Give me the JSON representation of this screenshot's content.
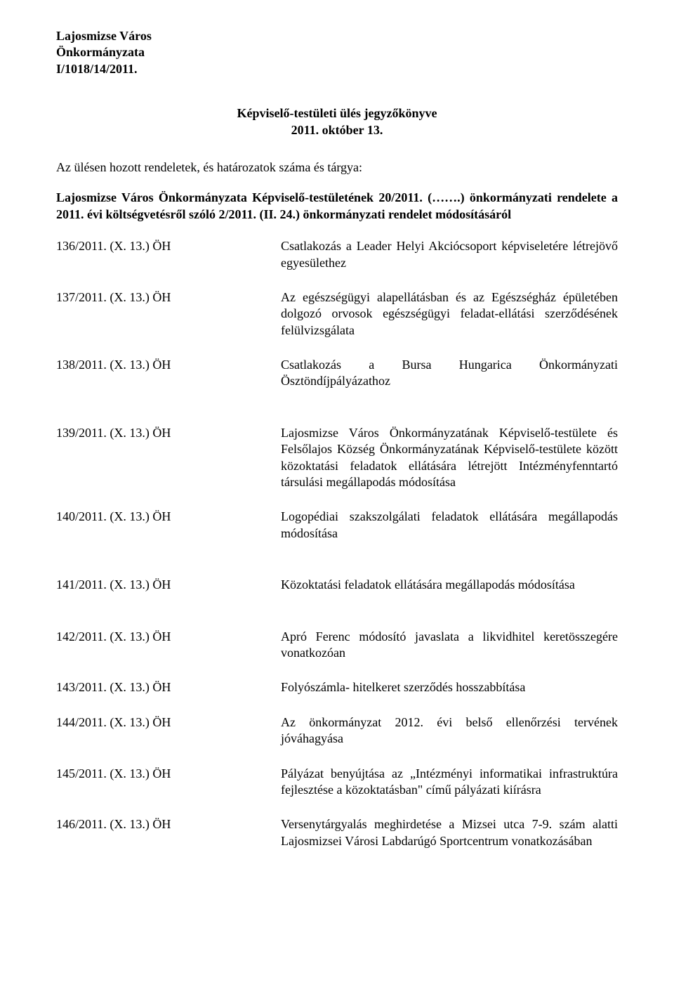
{
  "header": {
    "line1": "Lajosmizse Város",
    "line2": "Önkormányzata",
    "line3": "I/1018/14/2011."
  },
  "title": {
    "line1": "Képviselő-testületi ülés jegyzőkönyve",
    "line2": "2011. október 13."
  },
  "intro": "Az ülésen hozott rendeletek, és határozatok száma és tárgya:",
  "decree": "Lajosmizse Város Önkormányzata Képviselő-testületének 20/2011. (…….) önkormányzati rendelete a 2011. évi költségvetésről szóló 2/2011. (II. 24.) önkormányzati rendelet módosításáról",
  "items": [
    {
      "num": "136/2011. (X. 13.) ÖH",
      "desc": "Csatlakozás a Leader Helyi Akciócsoport képviseletére létrejövő egyesülethez"
    },
    {
      "num": "137/2011. (X. 13.) ÖH",
      "desc": "Az egészségügyi alapellátásban és az Egészségház épületében dolgozó orvosok egészségügyi feladat-ellátási szerződésének felülvizsgálata"
    },
    {
      "num": "138/2011. (X. 13.) ÖH",
      "desc": "Csatlakozás a Bursa Hungarica Önkormányzati Ösztöndíjpályázathoz"
    },
    {
      "num": "139/2011. (X. 13.) ÖH",
      "desc": "Lajosmizse Város Önkormányzatának Képviselő-testülete és Felsőlajos Község Önkormányzatának Képviselő-testülete között közoktatási feladatok ellátására létrejött Intézményfenntartó társulási megállapodás módosítása"
    },
    {
      "num": "140/2011. (X. 13.) ÖH",
      "desc": "Logopédiai szakszolgálati feladatok ellátására megállapodás módosítása"
    },
    {
      "num": "141/2011. (X. 13.) ÖH",
      "desc": "Közoktatási feladatok ellátására megállapodás módosítása"
    },
    {
      "num": "142/2011. (X. 13.) ÖH",
      "desc": "Apró Ferenc módosító javaslata a likvidhitel keretösszegére vonatkozóan"
    },
    {
      "num": "143/2011. (X. 13.) ÖH",
      "desc": "Folyószámla- hitelkeret szerződés hosszabbítása"
    },
    {
      "num": "144/2011. (X. 13.) ÖH",
      "desc": "Az önkormányzat 2012. évi belső ellenőrzési tervének jóváhagyása"
    },
    {
      "num": "145/2011. (X. 13.) ÖH",
      "desc": "Pályázat benyújtása az „Intézményi informatikai infrastruktúra fejlesztése a közoktatásban\" című pályázati kiírásra"
    },
    {
      "num": "146/2011. (X. 13.) ÖH",
      "desc": "Versenytárgyalás meghirdetése a Mizsei utca 7-9. szám alatti Lajosmizsei Városi Labdarúgó Sportcentrum vonatkozásában"
    }
  ],
  "gap_after": [
    2,
    4,
    5
  ]
}
